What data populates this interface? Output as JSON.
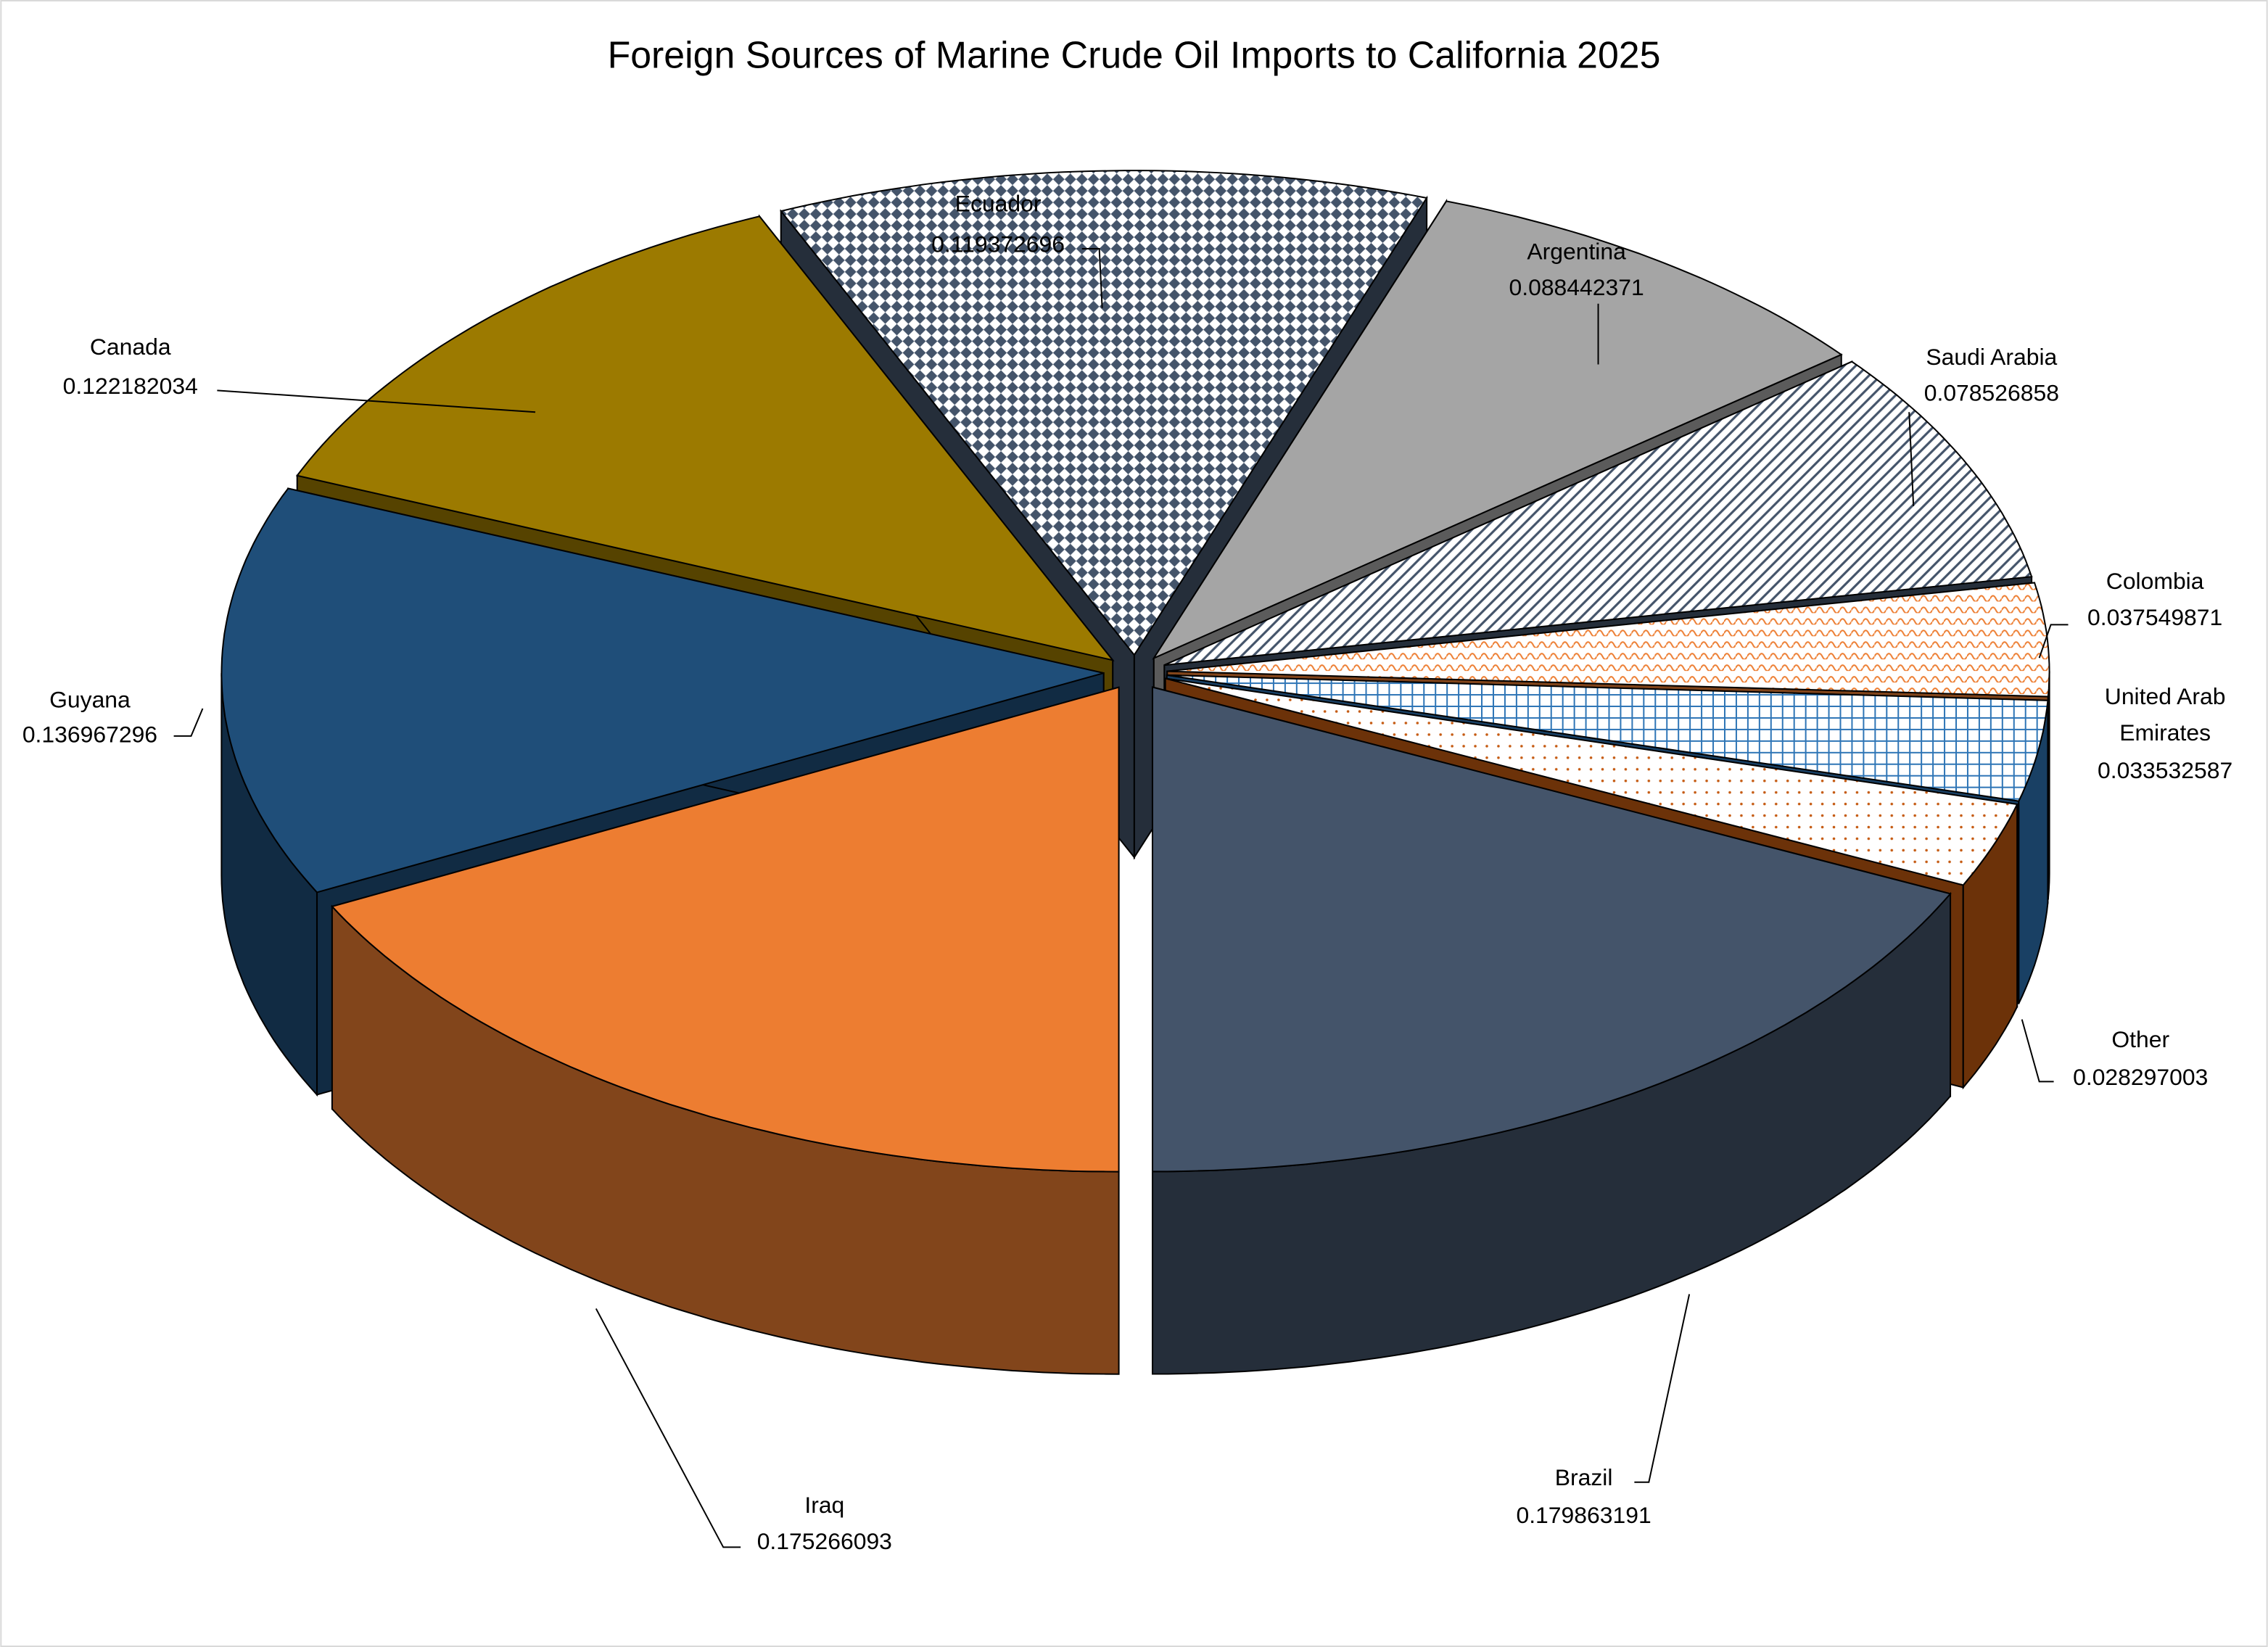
{
  "chart_data": {
    "type": "pie",
    "title": "Foreign Sources of Marine Crude Oil Imports to California 2025",
    "categories": [
      "Brazil",
      "Iraq",
      "Guyana",
      "Canada",
      "Ecuador",
      "Argentina",
      "Saudi Arabia",
      "Colombia",
      "United Arab Emirates",
      "Other"
    ],
    "values": [
      0.179863191,
      0.175266093,
      0.136967296,
      0.122182034,
      0.119372696,
      0.088442371,
      0.078526858,
      0.037549871,
      0.033532587,
      0.028297003
    ],
    "colors": [
      "#44546a",
      "#ed7d31",
      "#1f4e79",
      "#9c7a00",
      "#44546a",
      "#a5a5a5",
      "#44546a",
      "#ed7d31",
      "#2e75b6",
      "#c55a11"
    ],
    "patterns": [
      "solid",
      "solid",
      "solid",
      "solid",
      "diamond",
      "solid",
      "diagonal",
      "wave",
      "grid",
      "dots"
    ],
    "exploded": true
  }
}
